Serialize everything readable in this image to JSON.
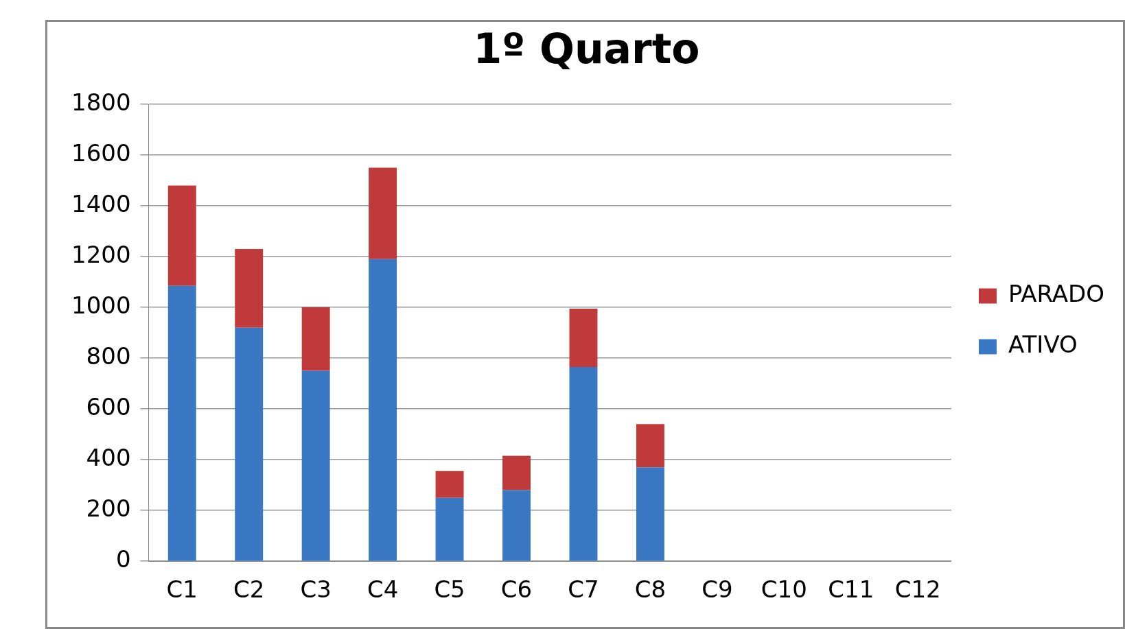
{
  "chart_data": {
    "type": "bar",
    "title": "1º Quarto",
    "stacked": true,
    "categories": [
      "C1",
      "C2",
      "C3",
      "C4",
      "C5",
      "C6",
      "C7",
      "C8",
      "C9",
      "C10",
      "C11",
      "C12"
    ],
    "series": [
      {
        "name": "ATIVO",
        "color": "#3a78c3",
        "values": [
          1085,
          920,
          750,
          1190,
          250,
          280,
          765,
          370,
          null,
          null,
          null,
          null
        ]
      },
      {
        "name": "PARADO",
        "color": "#c0393b",
        "values": [
          395,
          310,
          250,
          360,
          105,
          135,
          230,
          170,
          null,
          null,
          null,
          null
        ]
      }
    ],
    "ylim": [
      0,
      1800
    ],
    "yticks": [
      0,
      200,
      400,
      600,
      800,
      1000,
      1200,
      1400,
      1600,
      1800
    ],
    "grid": "y",
    "legend": "right"
  }
}
